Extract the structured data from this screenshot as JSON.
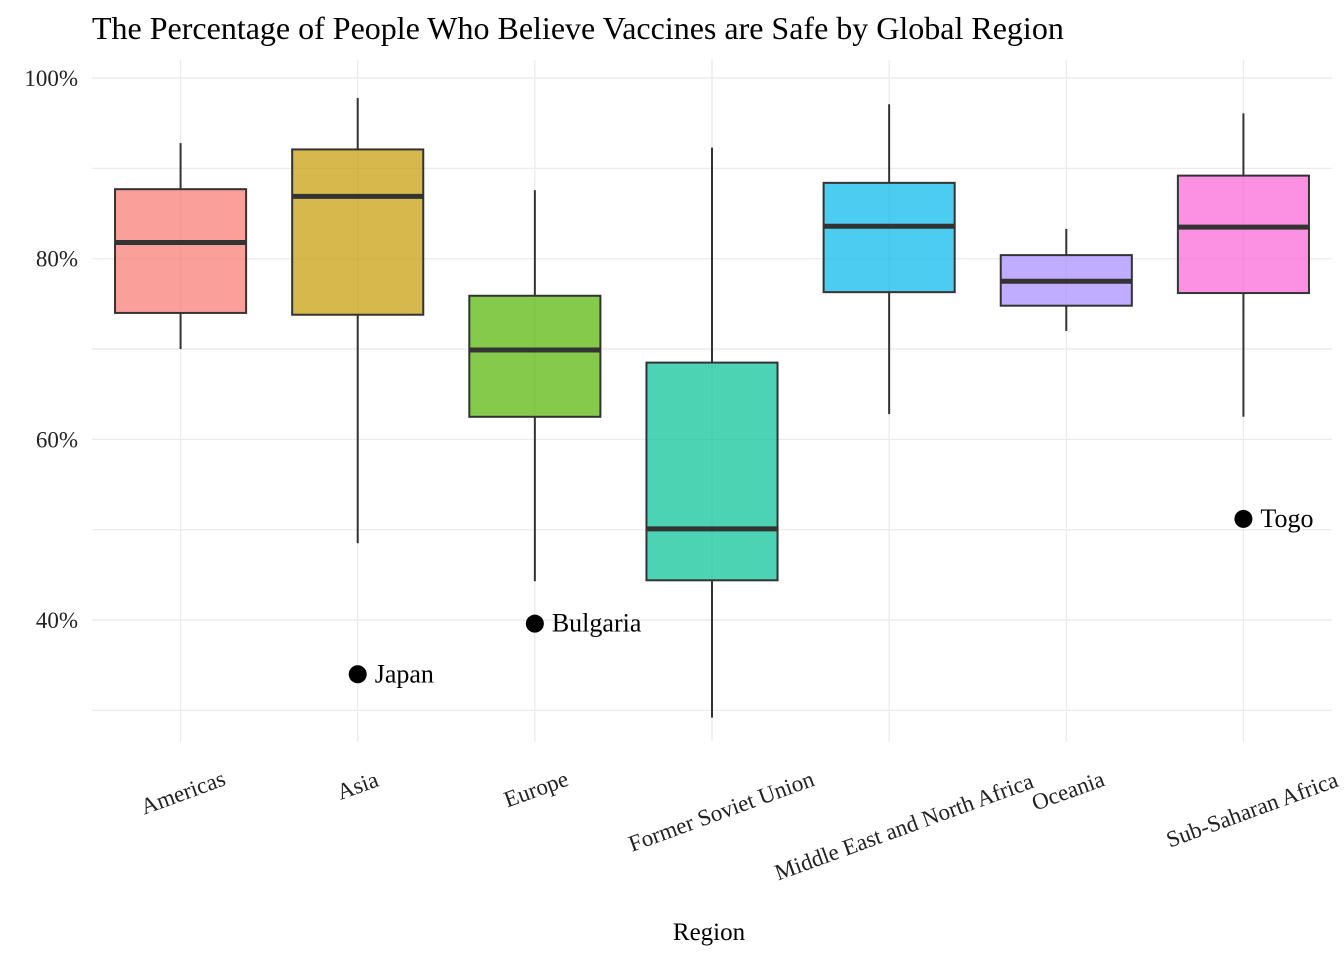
{
  "chart_data": {
    "type": "boxplot",
    "title": "The Percentage of People Who Believe Vaccines are Safe by Global Region",
    "xlabel": "Region",
    "ylabel": "",
    "ylim": [
      26.5,
      102
    ],
    "yticks": [
      40,
      60,
      80,
      100
    ],
    "ytick_labels": [
      "40%",
      "60%",
      "80%",
      "100%"
    ],
    "grid": true,
    "legend": "none",
    "series": [
      {
        "category": "Americas",
        "color": "#F8766D",
        "lower_whisker": 70,
        "q1": 74,
        "median": 81.8,
        "q3": 87.7,
        "upper_whisker": 92.8
      },
      {
        "category": "Asia",
        "color": "#C49A00",
        "lower_whisker": 48.5,
        "q1": 73.8,
        "median": 86.9,
        "q3": 92.1,
        "upper_whisker": 97.8
      },
      {
        "category": "Europe",
        "color": "#53B400",
        "lower_whisker": 44.3,
        "q1": 62.5,
        "median": 69.9,
        "q3": 75.9,
        "upper_whisker": 87.6
      },
      {
        "category": "Former Soviet Union",
        "color": "#00C094",
        "lower_whisker": 29.2,
        "q1": 44.4,
        "median": 50.1,
        "q3": 68.5,
        "upper_whisker": 92.3
      },
      {
        "category": "Middle East and North Africa",
        "color": "#00B6EB",
        "lower_whisker": 62.8,
        "q1": 76.3,
        "median": 83.6,
        "q3": 88.4,
        "upper_whisker": 97.1
      },
      {
        "category": "Oceania",
        "color": "#A58AFF",
        "lower_whisker": 72,
        "q1": 74.8,
        "median": 77.5,
        "q3": 80.4,
        "upper_whisker": 83.3
      },
      {
        "category": "Sub-Saharan Africa",
        "color": "#FB61D7",
        "lower_whisker": 62.5,
        "q1": 76.2,
        "median": 83.5,
        "q3": 89.2,
        "upper_whisker": 96.1
      }
    ],
    "outliers": [
      {
        "category": "Asia",
        "value": 34,
        "label": "Japan"
      },
      {
        "category": "Europe",
        "value": 39.6,
        "label": "Bulgaria"
      },
      {
        "category": "Sub-Saharan Africa",
        "value": 51.2,
        "label": "Togo"
      }
    ]
  }
}
